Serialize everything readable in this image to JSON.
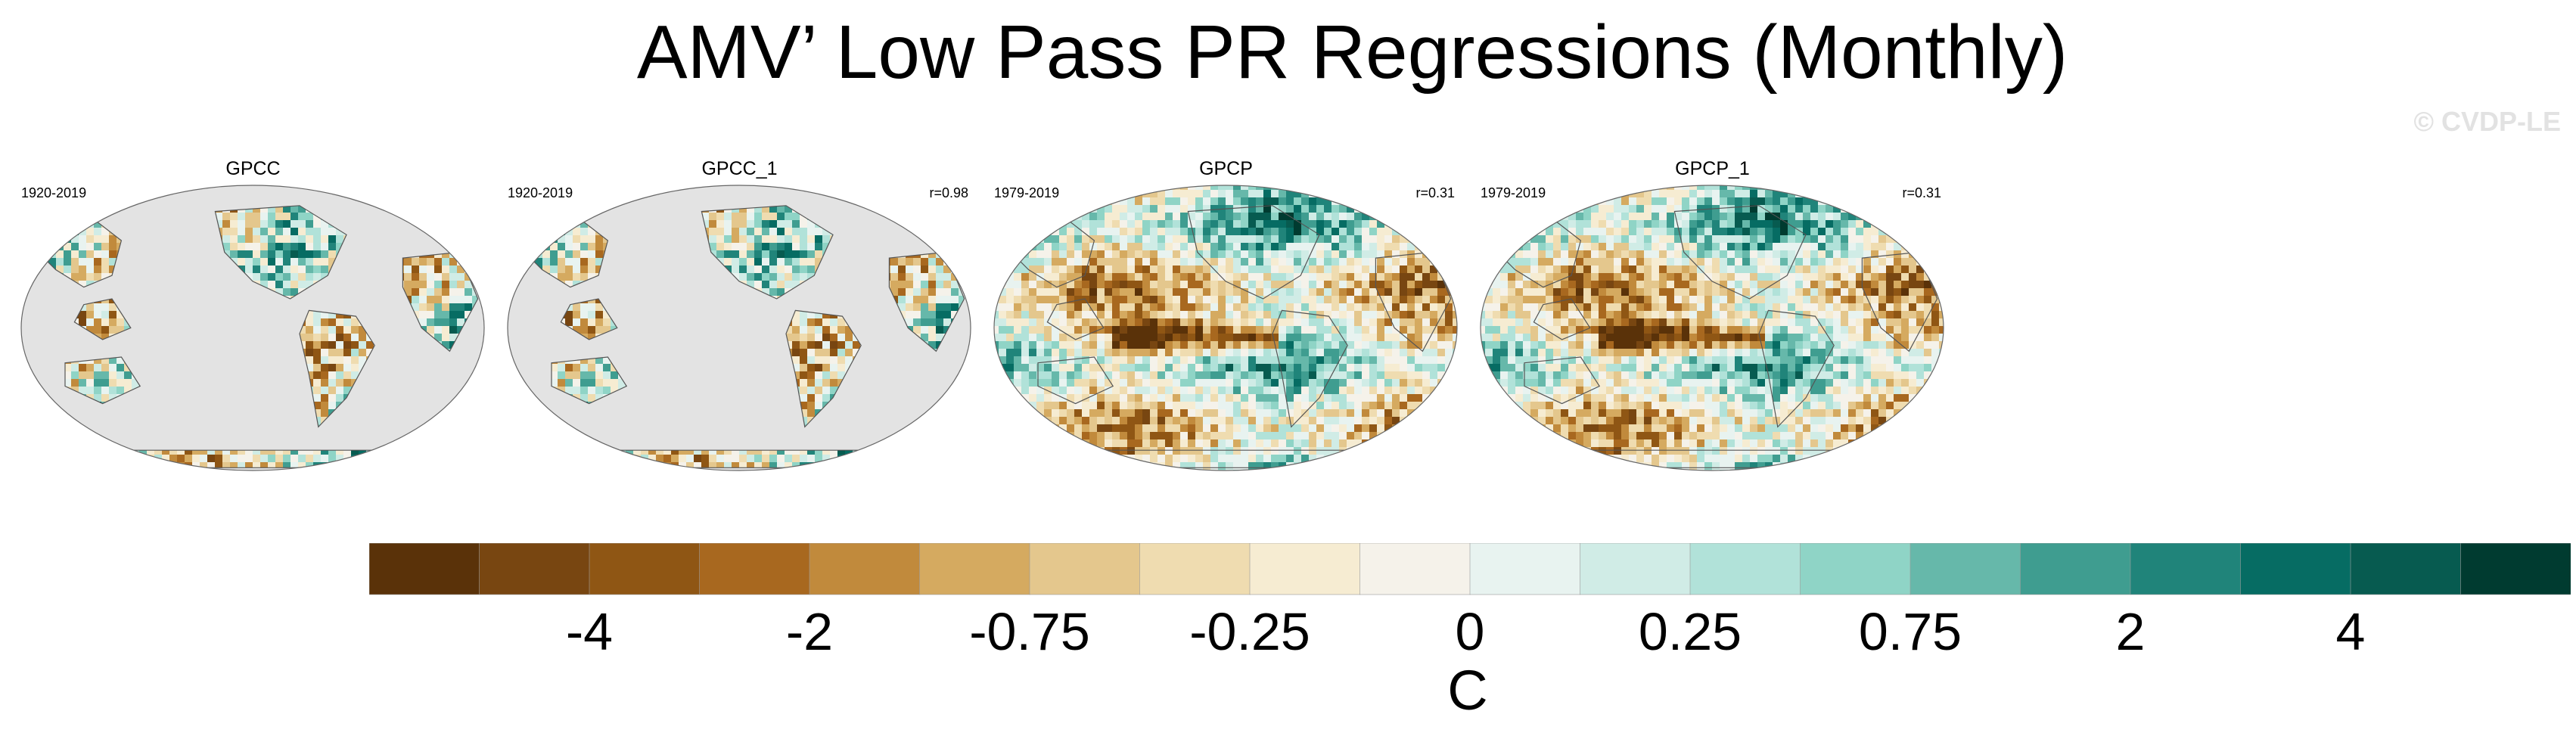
{
  "chart_data": {
    "type": "heatmap",
    "title": "AMV’ Low Pass PR Regressions (Monthly)",
    "credit": "© CVDP-LE",
    "panels": [
      {
        "name": "GPCC",
        "period": "1920-2019",
        "corr": "",
        "coverage": "land"
      },
      {
        "name": "GPCC_1",
        "period": "1920-2019",
        "corr": "r=0.98",
        "coverage": "land"
      },
      {
        "name": "GPCP",
        "period": "1979-2019",
        "corr": "r=0.31",
        "coverage": "global"
      },
      {
        "name": "GPCP_1",
        "period": "1979-2019",
        "corr": "r=0.31",
        "coverage": "global"
      }
    ],
    "colorbar": {
      "label": "C",
      "tick_labels": [
        "-4",
        "-2",
        "-0.75",
        "-0.25",
        "0",
        "0.25",
        "0.75",
        "2",
        "4"
      ],
      "colors": [
        "#5a3209",
        "#784611",
        "#8f5614",
        "#a8681f",
        "#c18a3c",
        "#d5aa60",
        "#e4c78d",
        "#efdcb0",
        "#f6ecd2",
        "#f5f2ea",
        "#e8f3f0",
        "#d0ece6",
        "#b1e2d9",
        "#8fd4c6",
        "#66b8aa",
        "#3f9d90",
        "#20847a",
        "#066c63",
        "#075b50",
        "#003b30"
      ]
    }
  }
}
